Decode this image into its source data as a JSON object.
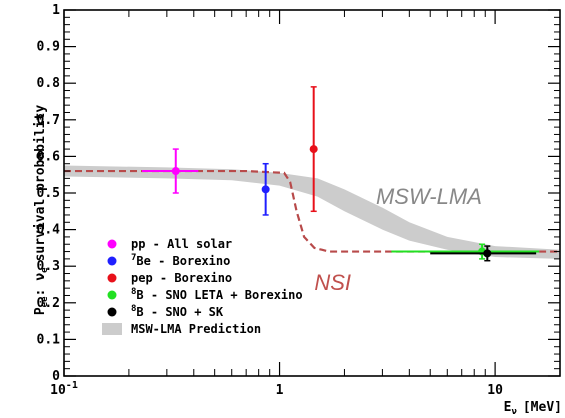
{
  "chart_data": {
    "type": "scatter",
    "x_scale": "log",
    "xlim": [
      0.1,
      20
    ],
    "ylim": [
      0,
      1
    ],
    "xlabel": "E_ν [MeV]",
    "xlabel_main": "E",
    "xlabel_sub": "ν",
    "xlabel_unit": "[MeV]",
    "ylabel_parts": {
      "main": "P",
      "sub": "ee",
      "tail": ":",
      "nu": "ν",
      "nu_sub": "e",
      "rest": "survival probability"
    },
    "x_ticks": [
      {
        "value": 0.1,
        "label_base": "10",
        "label_exp": "-1"
      },
      {
        "value": 1,
        "label": "1"
      },
      {
        "value": 10,
        "label": "10"
      }
    ],
    "y_ticks": [
      "0",
      "0.1",
      "0.2",
      "0.3",
      "0.4",
      "0.5",
      "0.6",
      "0.7",
      "0.8",
      "0.9",
      "1"
    ],
    "grid": false,
    "series": [
      {
        "name": "pp - All solar",
        "color": "#ff00ff",
        "points": [
          {
            "x": 0.33,
            "y": 0.56,
            "ylo": 0.5,
            "yhi": 0.62,
            "xlo": 0.23,
            "xhi": 0.42
          }
        ]
      },
      {
        "name": "Be - Borexino",
        "sup": "7",
        "color": "#1f1fff",
        "points": [
          {
            "x": 0.862,
            "y": 0.51,
            "ylo": 0.44,
            "yhi": 0.58
          }
        ]
      },
      {
        "name": "pep - Borexino",
        "color": "#e8101a",
        "points": [
          {
            "x": 1.44,
            "y": 0.62,
            "ylo": 0.45,
            "yhi": 0.79
          }
        ]
      },
      {
        "name": "B - SNO LETA + Borexino",
        "sup": "8",
        "color": "#22e022",
        "points": [
          {
            "x": 8.7,
            "y": 0.34,
            "ylo": 0.32,
            "yhi": 0.36,
            "xlo": 3.3,
            "xhi": 16
          }
        ]
      },
      {
        "name": "B - SNO + SK",
        "sup": "8",
        "color": "#000000",
        "points": [
          {
            "x": 9.2,
            "y": 0.335,
            "ylo": 0.315,
            "yhi": 0.355,
            "xlo": 5.0,
            "xhi": 15.5
          }
        ]
      }
    ],
    "msw_band": {
      "name": "MSW-LMA Prediction",
      "color": "#cccccc",
      "upper": [
        [
          0.1,
          0.575
        ],
        [
          0.3,
          0.57
        ],
        [
          0.6,
          0.565
        ],
        [
          1,
          0.555
        ],
        [
          1.5,
          0.54
        ],
        [
          2,
          0.51
        ],
        [
          3,
          0.46
        ],
        [
          4,
          0.42
        ],
        [
          6,
          0.38
        ],
        [
          10,
          0.355
        ],
        [
          20,
          0.345
        ]
      ],
      "lower": [
        [
          0.1,
          0.545
        ],
        [
          0.3,
          0.54
        ],
        [
          0.6,
          0.535
        ],
        [
          1,
          0.52
        ],
        [
          1.5,
          0.49
        ],
        [
          2,
          0.45
        ],
        [
          3,
          0.4
        ],
        [
          4,
          0.37
        ],
        [
          6,
          0.345
        ],
        [
          10,
          0.325
        ],
        [
          20,
          0.32
        ]
      ]
    },
    "nsi_curve": {
      "color": "#b84a4a",
      "points": [
        [
          0.1,
          0.56
        ],
        [
          0.3,
          0.56
        ],
        [
          0.7,
          0.56
        ],
        [
          1.05,
          0.555
        ],
        [
          1.12,
          0.53
        ],
        [
          1.2,
          0.45
        ],
        [
          1.3,
          0.38
        ],
        [
          1.45,
          0.35
        ],
        [
          1.7,
          0.34
        ],
        [
          4,
          0.34
        ],
        [
          10,
          0.34
        ],
        [
          20,
          0.34
        ]
      ]
    },
    "annotations": [
      {
        "text": "MSW-LMA",
        "x": 2.8,
        "y": 0.47,
        "color": "#888888"
      },
      {
        "text": "NSI",
        "x": 1.45,
        "y": 0.235,
        "color": "#c0504d"
      }
    ]
  }
}
